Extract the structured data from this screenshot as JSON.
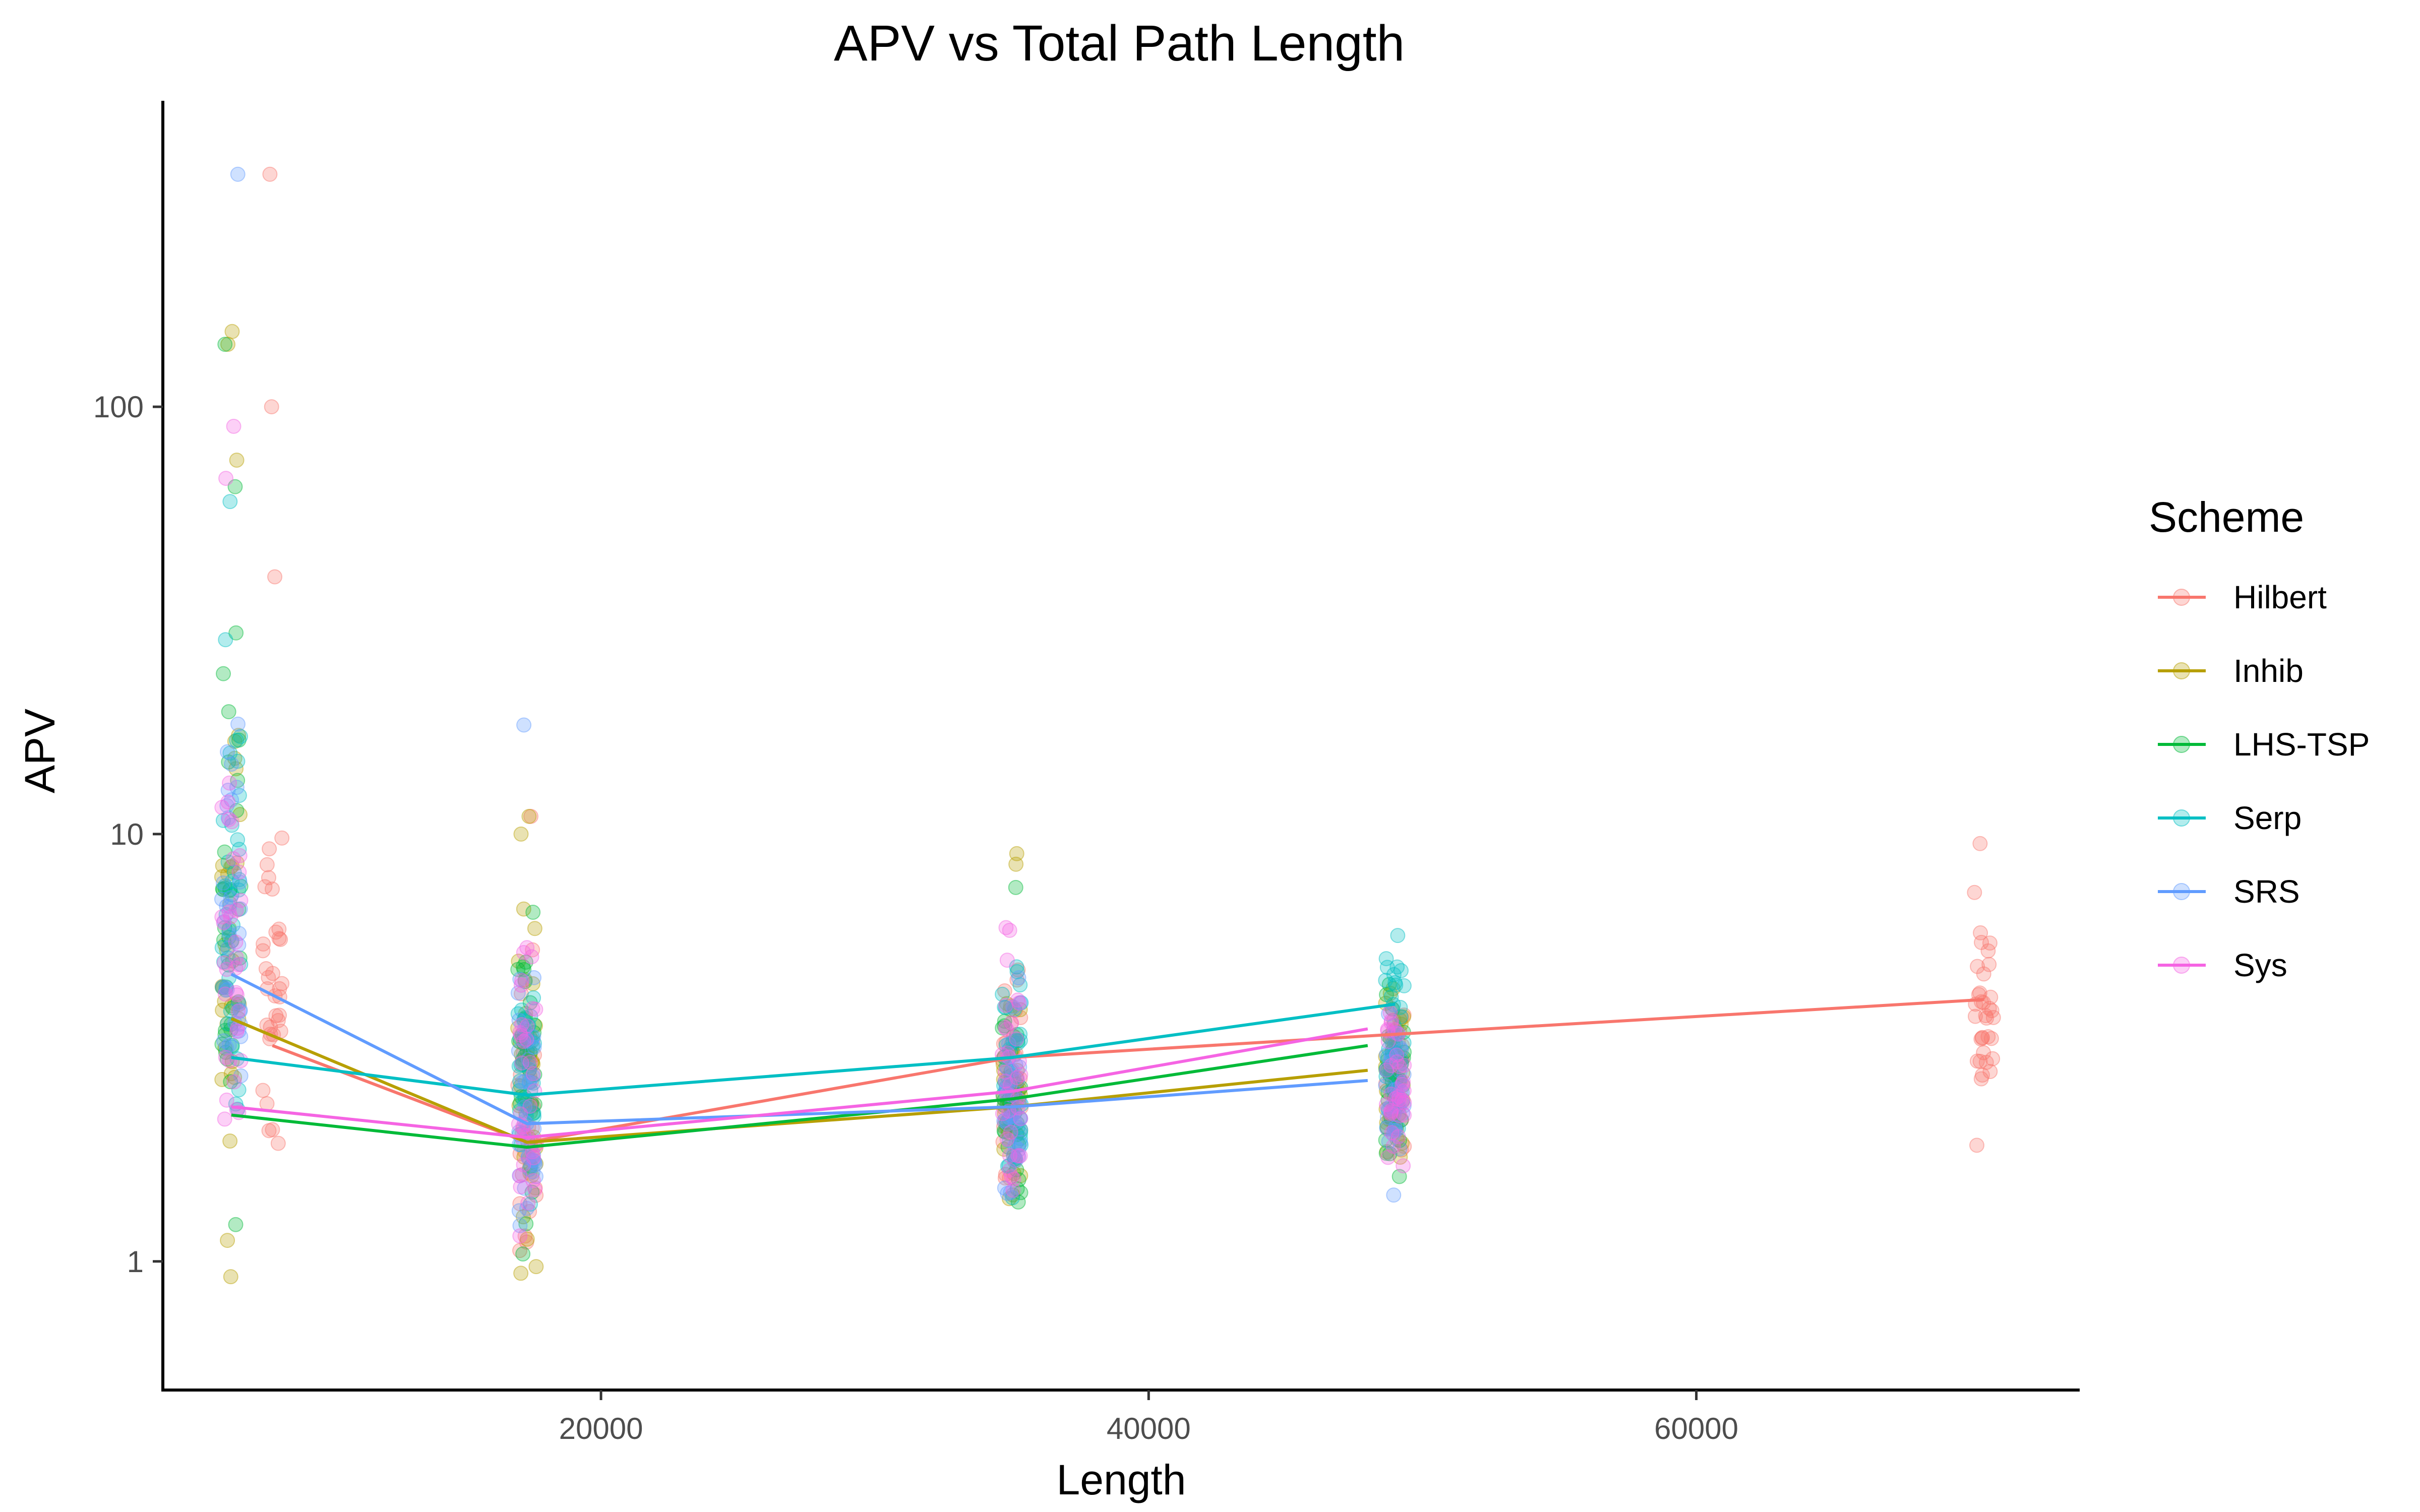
{
  "chart_data": {
    "type": "scatter",
    "title": "APV vs Total Path Length",
    "xlabel": "Length",
    "ylabel": "APV",
    "x_scale": "linear",
    "y_scale": "log10",
    "xlim": [
      4000,
      74000
    ],
    "ylim": [
      0.5,
      520
    ],
    "x_ticks": [
      20000,
      40000,
      60000
    ],
    "x_tick_labels": [
      "20000",
      "40000",
      "60000"
    ],
    "y_ticks": [
      1,
      10,
      100
    ],
    "y_tick_labels": [
      "1",
      "10",
      "100"
    ],
    "grid": false,
    "legend": {
      "title": "Scheme",
      "position": "right"
    },
    "point_alpha": 0.3,
    "series": [
      {
        "name": "Hilbert",
        "color": "#F8766D",
        "mean_line": {
          "x": [
            8000,
            17300,
            35000,
            49000,
            70500
          ],
          "y": [
            3.2,
            1.9,
            3.0,
            3.4,
            4.1
          ]
        },
        "point_clusters": [
          {
            "x": 8000,
            "min": 0.82,
            "max": 20,
            "outliers": [
              40,
              100,
              350
            ]
          },
          {
            "x": 17300,
            "min": 0.65,
            "max": 7.0,
            "outliers": [
              11
            ]
          },
          {
            "x": 35000,
            "min": 1.1,
            "max": 6.5,
            "outliers": []
          },
          {
            "x": 49000,
            "min": 1.5,
            "max": 5.0,
            "outliers": []
          },
          {
            "x": 70500,
            "min": 1.5,
            "max": 7.8,
            "outliers": [
              9.5
            ]
          }
        ]
      },
      {
        "name": "Inhib",
        "color": "#B79F00",
        "mean_line": {
          "x": [
            6500,
            17300,
            35000,
            48000
          ],
          "y": [
            3.7,
            1.9,
            2.3,
            2.8
          ]
        },
        "point_clusters": [
          {
            "x": 6500,
            "min": 0.64,
            "max": 60,
            "outliers": [
              75,
              140,
              150
            ]
          },
          {
            "x": 17300,
            "min": 0.72,
            "max": 9.0,
            "outliers": [
              10,
              11
            ]
          },
          {
            "x": 35000,
            "min": 0.95,
            "max": 6.5,
            "outliers": [
              8.5,
              9
            ]
          },
          {
            "x": 49000,
            "min": 1.3,
            "max": 5.5,
            "outliers": []
          }
        ]
      },
      {
        "name": "LHS-TSP",
        "color": "#00BA38",
        "mean_line": {
          "x": [
            6500,
            17300,
            35000,
            48000
          ],
          "y": [
            2.2,
            1.85,
            2.4,
            3.2
          ]
        },
        "point_clusters": [
          {
            "x": 6500,
            "min": 0.9,
            "max": 45,
            "outliers": [
              65,
              140
            ]
          },
          {
            "x": 17300,
            "min": 0.9,
            "max": 8.0,
            "outliers": []
          },
          {
            "x": 35000,
            "min": 1.1,
            "max": 5.0,
            "outliers": [
              7.5
            ]
          },
          {
            "x": 49000,
            "min": 1.15,
            "max": 6.2,
            "outliers": []
          }
        ]
      },
      {
        "name": "Serp",
        "color": "#00BFC4",
        "mean_line": {
          "x": [
            6500,
            17300,
            35000,
            49000
          ],
          "y": [
            3.0,
            2.45,
            3.0,
            4.0
          ]
        },
        "point_clusters": [
          {
            "x": 6500,
            "min": 0.9,
            "max": 45,
            "outliers": [
              60
            ]
          },
          {
            "x": 17300,
            "min": 1.0,
            "max": 7.5,
            "outliers": []
          },
          {
            "x": 35000,
            "min": 1.2,
            "max": 6.5,
            "outliers": []
          },
          {
            "x": 49000,
            "min": 1.5,
            "max": 7.2,
            "outliers": []
          }
        ]
      },
      {
        "name": "SRS",
        "color": "#619CFF",
        "mean_line": {
          "x": [
            6500,
            17300,
            35000,
            48000
          ],
          "y": [
            4.7,
            2.1,
            2.3,
            2.65
          ]
        },
        "point_clusters": [
          {
            "x": 6500,
            "min": 0.8,
            "max": 30,
            "outliers": [
              350
            ]
          },
          {
            "x": 17300,
            "min": 0.75,
            "max": 6.0,
            "outliers": [
              18
            ]
          },
          {
            "x": 35000,
            "min": 0.9,
            "max": 5.5,
            "outliers": []
          },
          {
            "x": 49000,
            "min": 1.2,
            "max": 5.0,
            "outliers": []
          }
        ]
      },
      {
        "name": "Sys",
        "color": "#F564E3",
        "mean_line": {
          "x": [
            6500,
            17300,
            35000,
            48000
          ],
          "y": [
            2.3,
            1.95,
            2.5,
            3.5
          ]
        },
        "point_clusters": [
          {
            "x": 6500,
            "min": 0.85,
            "max": 30,
            "outliers": [
              68,
              90
            ]
          },
          {
            "x": 17300,
            "min": 0.75,
            "max": 8.5,
            "outliers": []
          },
          {
            "x": 35000,
            "min": 0.95,
            "max": 8.5,
            "outliers": []
          },
          {
            "x": 49000,
            "min": 1.3,
            "max": 5.0,
            "outliers": []
          }
        ]
      }
    ]
  }
}
